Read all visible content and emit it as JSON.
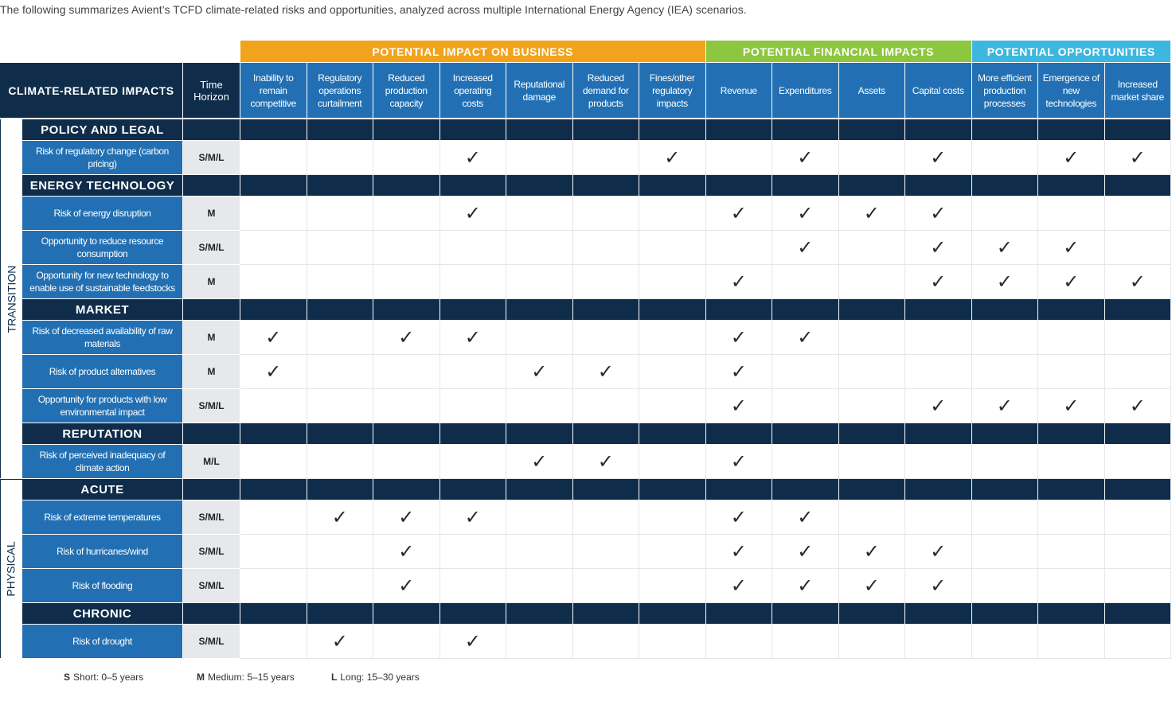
{
  "intro": "The following summarizes Avient’s TCFD climate-related risks and opportunities, analyzed across multiple International Energy Agency (IEA) scenarios.",
  "header": {
    "impacts_label": "CLIMATE-RELATED IMPACTS",
    "time_label": "Time Horizon",
    "groups": [
      {
        "title": "POTENTIAL IMPACT ON BUSINESS",
        "columns": [
          "Inability to remain competitive",
          "Regulatory operations curtailment",
          "Reduced production capacity",
          "Increased operating costs",
          "Reputational damage",
          "Reduced demand for products",
          "Fines/other regulatory impacts"
        ]
      },
      {
        "title": "POTENTIAL FINANCIAL IMPACTS",
        "columns": [
          "Revenue",
          "Expenditures",
          "Assets",
          "Capital costs"
        ]
      },
      {
        "title": "POTENTIAL OPPORTUNITIES",
        "columns": [
          "More efficient production processes",
          "Emergence of new technologies",
          "Increased market share"
        ]
      }
    ]
  },
  "sections": [
    {
      "label": "TRANSITION",
      "categories": [
        {
          "title": "POLICY AND LEGAL",
          "rows": [
            {
              "label": "Risk of regulatory change (carbon pricing)",
              "horizon": "S/M/L",
              "cells": [
                null,
                null,
                null,
                "✓",
                null,
                null,
                "✓",
                null,
                "✓",
                null,
                "✓",
                null,
                "✓",
                "✓"
              ]
            }
          ]
        },
        {
          "title": "ENERGY TECHNOLOGY",
          "rows": [
            {
              "label": "Risk of energy disruption",
              "horizon": "M",
              "cells": [
                null,
                null,
                null,
                "✓",
                null,
                null,
                null,
                "✓",
                "✓",
                "✓",
                "✓",
                null,
                null,
                null
              ]
            },
            {
              "label": "Opportunity to reduce resource consumption",
              "horizon": "S/M/L",
              "cells": [
                null,
                null,
                null,
                null,
                null,
                null,
                null,
                null,
                "✓",
                null,
                "✓",
                "✓",
                "✓",
                null
              ]
            },
            {
              "label": "Opportunity for new technology to enable use of sustainable feedstocks",
              "horizon": "M",
              "cells": [
                null,
                null,
                null,
                null,
                null,
                null,
                null,
                "✓",
                null,
                null,
                "✓",
                "✓",
                "✓",
                "✓"
              ]
            }
          ]
        },
        {
          "title": "MARKET",
          "rows": [
            {
              "label": "Risk of decreased availability of raw materials",
              "horizon": "M",
              "cells": [
                "✓",
                null,
                "✓",
                "✓",
                null,
                null,
                null,
                "✓",
                "✓",
                null,
                null,
                null,
                null,
                null
              ]
            },
            {
              "label": "Risk of product alternatives",
              "horizon": "M",
              "cells": [
                "✓",
                null,
                null,
                null,
                "✓",
                "✓",
                null,
                "✓",
                null,
                null,
                null,
                null,
                null,
                null
              ]
            },
            {
              "label": "Opportunity for products with low environmental impact",
              "horizon": "S/M/L",
              "cells": [
                null,
                null,
                null,
                null,
                null,
                null,
                null,
                "✓",
                null,
                null,
                "✓",
                "✓",
                "✓",
                "✓"
              ]
            }
          ]
        },
        {
          "title": "REPUTATION",
          "rows": [
            {
              "label": "Risk of perceived inadequacy of climate action",
              "horizon": "M/L",
              "cells": [
                null,
                null,
                null,
                null,
                "✓",
                "✓",
                null,
                "✓",
                null,
                null,
                null,
                null,
                null,
                null
              ]
            }
          ]
        }
      ]
    },
    {
      "label": "PHYSICAL",
      "categories": [
        {
          "title": "ACUTE",
          "rows": [
            {
              "label": "Risk of extreme temperatures",
              "horizon": "S/M/L",
              "cells": [
                null,
                "✓",
                "✓",
                "✓",
                null,
                null,
                null,
                "✓",
                "✓",
                null,
                null,
                null,
                null,
                null
              ]
            },
            {
              "label": "Risk of hurricanes/wind",
              "horizon": "S/M/L",
              "cells": [
                null,
                null,
                "✓",
                null,
                null,
                null,
                null,
                "✓",
                "✓",
                "✓",
                "✓",
                null,
                null,
                null
              ]
            },
            {
              "label": "Risk of flooding",
              "horizon": "S/M/L",
              "cells": [
                null,
                null,
                "✓",
                null,
                null,
                null,
                null,
                "✓",
                "✓",
                "✓",
                "✓",
                null,
                null,
                null
              ]
            }
          ]
        },
        {
          "title": "CHRONIC",
          "rows": [
            {
              "label": "Risk of drought",
              "horizon": "S/M/L",
              "cells": [
                null,
                "✓",
                null,
                "✓",
                null,
                null,
                null,
                null,
                null,
                null,
                null,
                null,
                null,
                null
              ]
            }
          ]
        }
      ]
    }
  ],
  "legend": [
    {
      "key": "S",
      "text": "Short: 0–5 years"
    },
    {
      "key": "M",
      "text": "Medium: 5–15 years"
    },
    {
      "key": "L",
      "text": "Long: 15–30 years"
    }
  ]
}
